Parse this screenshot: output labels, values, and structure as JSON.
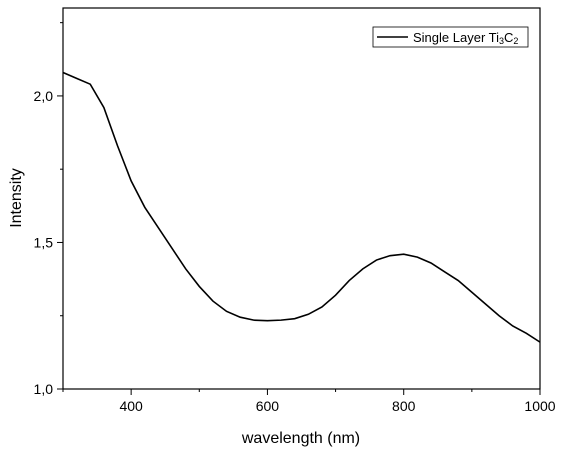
{
  "chart_data": {
    "type": "line",
    "xlabel": "wavelength (nm)",
    "ylabel": "Intensity",
    "xlim": [
      300,
      1000
    ],
    "ylim": [
      1.0,
      2.3
    ],
    "xticks": [
      400,
      600,
      800,
      1000
    ],
    "xtick_labels": [
      "400",
      "600",
      "800",
      "1000"
    ],
    "yticks": [
      1.0,
      1.5,
      2.0
    ],
    "ytick_labels": [
      "1,0",
      "1,5",
      "2,0"
    ],
    "grid": false,
    "legend_position": "top-right",
    "series": [
      {
        "name_main": "Single Layer Ti",
        "name_sub1": "3",
        "name_mid": "C",
        "name_sub2": "2",
        "color": "#000000",
        "x": [
          300,
          320,
          340,
          360,
          380,
          400,
          420,
          440,
          460,
          480,
          500,
          520,
          540,
          560,
          580,
          600,
          620,
          640,
          660,
          680,
          700,
          720,
          740,
          760,
          780,
          800,
          820,
          840,
          860,
          880,
          900,
          920,
          940,
          960,
          980,
          1000
        ],
        "y": [
          2.08,
          2.06,
          2.04,
          1.96,
          1.83,
          1.71,
          1.62,
          1.55,
          1.48,
          1.41,
          1.35,
          1.3,
          1.265,
          1.245,
          1.235,
          1.233,
          1.235,
          1.24,
          1.255,
          1.28,
          1.32,
          1.37,
          1.41,
          1.44,
          1.455,
          1.46,
          1.45,
          1.43,
          1.4,
          1.37,
          1.33,
          1.29,
          1.25,
          1.215,
          1.19,
          1.16
        ]
      }
    ]
  }
}
